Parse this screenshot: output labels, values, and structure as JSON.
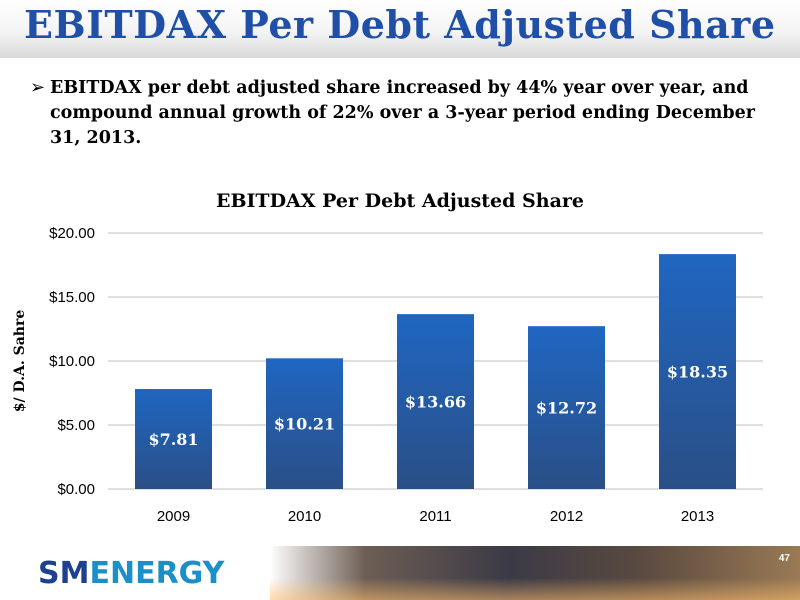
{
  "slide": {
    "title": "EBITDAX Per Debt Adjusted Share",
    "bullet": "EBITDAX per debt adjusted share increased by 44% year over year, and compound annual growth of 22% over a 3-year period ending December 31, 2013.",
    "page_number": "47"
  },
  "logo": {
    "part1": "SM",
    "part2": "ENERGY"
  },
  "colors": {
    "title": "#1f4fa6",
    "bar": "#1f66c2",
    "bar_bottom": "#2a4f86",
    "grid": "#bfbfbf"
  },
  "chart_data": {
    "type": "bar",
    "title": "EBITDAX Per Debt Adjusted Share",
    "ylabel": "$/ D.A. Sahre",
    "xlabel": "",
    "categories": [
      "2009",
      "2010",
      "2011",
      "2012",
      "2013"
    ],
    "values": [
      7.81,
      10.21,
      13.66,
      12.72,
      18.35
    ],
    "value_labels": [
      "$7.81",
      "$10.21",
      "$13.66",
      "$12.72",
      "$18.35"
    ],
    "ylim": [
      0,
      20
    ],
    "yticks": [
      0,
      5,
      10,
      15,
      20
    ],
    "ytick_labels": [
      "$0.00",
      "$5.00",
      "$10.00",
      "$15.00",
      "$20.00"
    ],
    "grid": true,
    "legend": "none"
  }
}
